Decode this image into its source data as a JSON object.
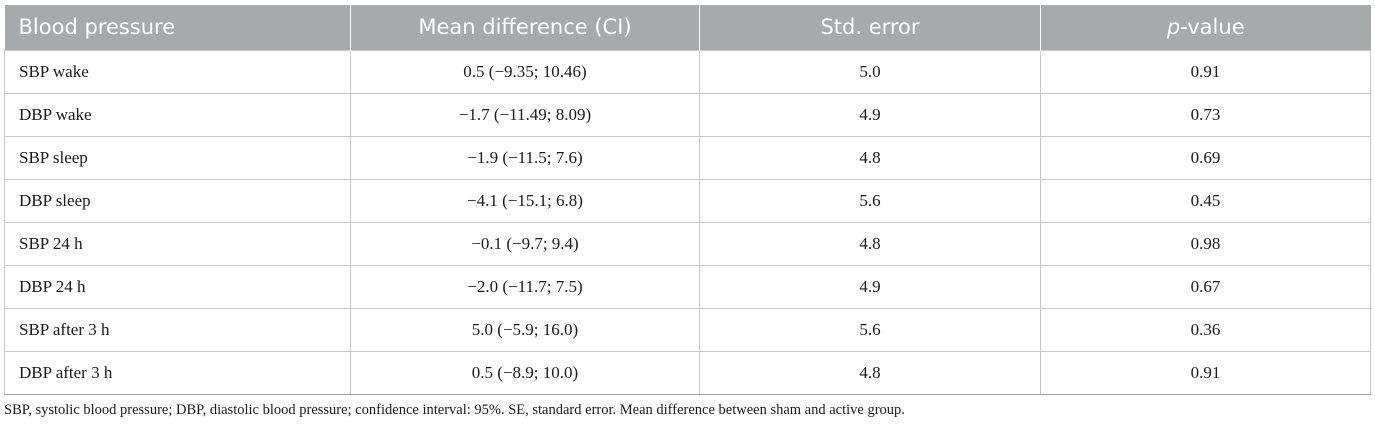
{
  "table": {
    "headers": {
      "col1": "Blood pressure",
      "col2": "Mean difference (CI)",
      "col3": "Std. error",
      "col4_italic": "p",
      "col4_rest": "-value"
    },
    "rows": [
      {
        "measure": "SBP wake",
        "mean_diff": "0.5 (−9.35; 10.46)",
        "std_error": "5.0",
        "p_value": "0.91"
      },
      {
        "measure": "DBP wake",
        "mean_diff": "−1.7 (−11.49; 8.09)",
        "std_error": "4.9",
        "p_value": "0.73"
      },
      {
        "measure": "SBP sleep",
        "mean_diff": "−1.9 (−11.5; 7.6)",
        "std_error": "4.8",
        "p_value": "0.69"
      },
      {
        "measure": "DBP sleep",
        "mean_diff": "−4.1 (−15.1; 6.8)",
        "std_error": "5.6",
        "p_value": "0.45"
      },
      {
        "measure": "SBP 24 h",
        "mean_diff": "−0.1 (−9.7; 9.4)",
        "std_error": "4.8",
        "p_value": "0.98"
      },
      {
        "measure": "DBP 24 h",
        "mean_diff": "−2.0 (−11.7; 7.5)",
        "std_error": "4.9",
        "p_value": "0.67"
      },
      {
        "measure": "SBP after 3 h",
        "mean_diff": "5.0 (−5.9; 16.0)",
        "std_error": "5.6",
        "p_value": "0.36"
      },
      {
        "measure": "DBP after 3 h",
        "mean_diff": "0.5 (−8.9; 10.0)",
        "std_error": "4.8",
        "p_value": "0.91"
      }
    ]
  },
  "footnote": "SBP, systolic blood pressure; DBP, diastolic blood pressure; confidence interval: 95%. SE, standard error. Mean difference between sham and active group.",
  "colors": {
    "header_bg": "#a7aaab",
    "header_text": "#ffffff",
    "grid": "#c8c8c8"
  }
}
